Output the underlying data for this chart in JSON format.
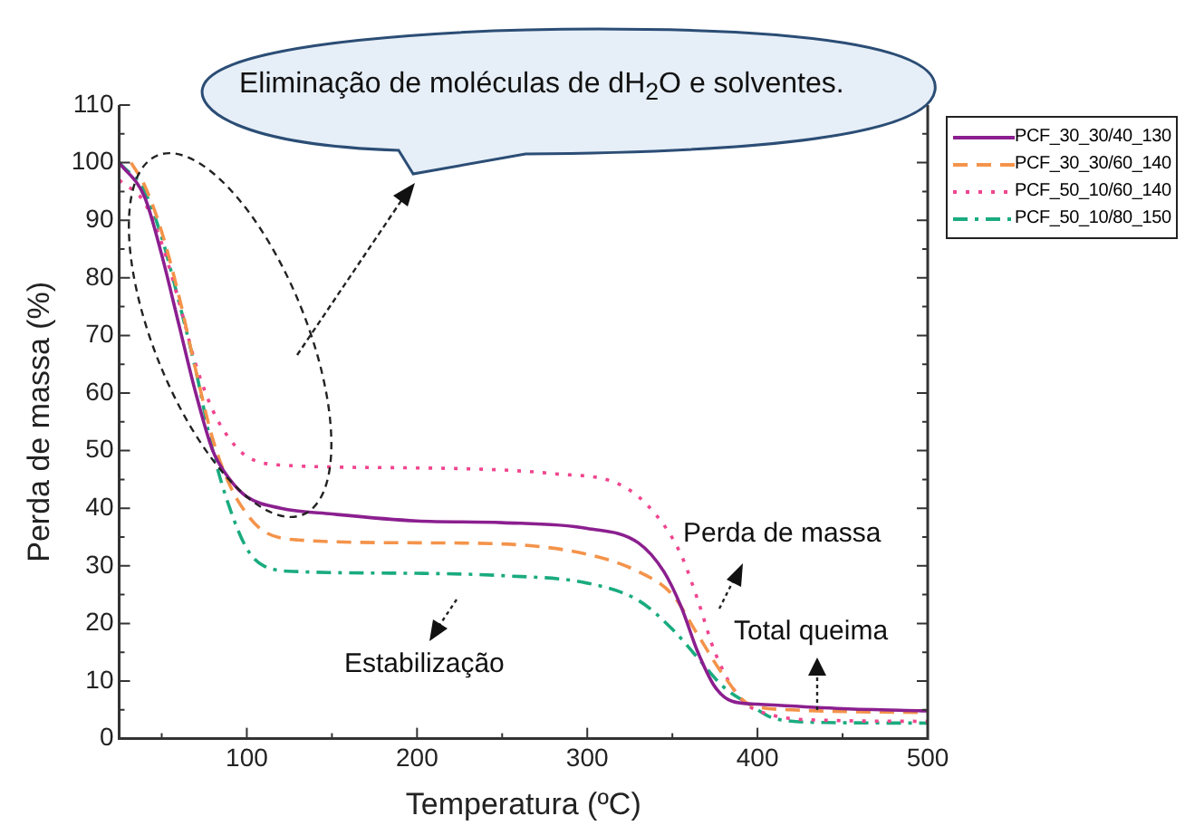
{
  "chart_data": {
    "type": "line",
    "xlabel": "Temperatura (ºC)",
    "ylabel": "Perda de massa (%)",
    "xlim": [
      25,
      500
    ],
    "xticks": [
      100,
      200,
      300,
      400,
      500
    ],
    "ylim": [
      0,
      110
    ],
    "yticks": [
      0,
      10,
      20,
      30,
      40,
      50,
      60,
      70,
      80,
      90,
      100,
      110
    ],
    "grid": false,
    "legend": "top right",
    "marker": "none",
    "annotations": [
      "Eliminação de moléculas de dH$_{2}$O e solventes.",
      "Perda de massa",
      "Total queima",
      "Estabilização"
    ],
    "series": [
      {
        "name": "PCF_30_30/40_130",
        "color": "#8b1f8f",
        "line_style": "solid",
        "x": [
          25,
          40,
          50,
          60,
          70,
          80,
          90,
          100,
          120,
          150,
          200,
          250,
          300,
          330,
          345,
          355,
          365,
          375,
          385,
          400,
          450,
          500
        ],
        "values": [
          100,
          94,
          84,
          72,
          60,
          50,
          45,
          42,
          40,
          39,
          37.8,
          37.5,
          36.5,
          34,
          29,
          23,
          15,
          9,
          6.5,
          6,
          5.2,
          4.8
        ]
      },
      {
        "name": "PCF_30_30/60_140",
        "color": "#f4934a",
        "line_style": "dashed",
        "x": [
          32,
          40,
          50,
          60,
          70,
          80,
          90,
          100,
          110,
          130,
          200,
          250,
          300,
          330,
          350,
          365,
          380,
          395,
          420,
          500
        ],
        "values": [
          100,
          96,
          88,
          77,
          64,
          52,
          44,
          39,
          36,
          34.5,
          34,
          33.8,
          32,
          29,
          25,
          18,
          11,
          6,
          5,
          4.5
        ]
      },
      {
        "name": "PCF_50_10/60_140",
        "color": "#f0458f",
        "line_style": "dotted",
        "x": [
          25,
          40,
          50,
          60,
          70,
          80,
          90,
          100,
          120,
          200,
          280,
          320,
          340,
          355,
          365,
          375,
          390,
          410,
          440,
          500
        ],
        "values": [
          97,
          93,
          86,
          76,
          65,
          57,
          52,
          49,
          47.5,
          47,
          46,
          44,
          39,
          32,
          24,
          15,
          7,
          4,
          3.2,
          3
        ]
      },
      {
        "name": "PCF_50_10/80_150",
        "color": "#1aab7f",
        "line_style": "dashdot",
        "x": [
          25,
          40,
          50,
          60,
          70,
          80,
          90,
          100,
          110,
          130,
          200,
          250,
          300,
          330,
          350,
          365,
          380,
          395,
          410,
          440,
          500
        ],
        "values": [
          100,
          95,
          87,
          76,
          64,
          50,
          40,
          33,
          30,
          29,
          28.7,
          28.3,
          27,
          24,
          19,
          14,
          9,
          6,
          3.5,
          2.8,
          2.7
        ]
      }
    ]
  }
}
